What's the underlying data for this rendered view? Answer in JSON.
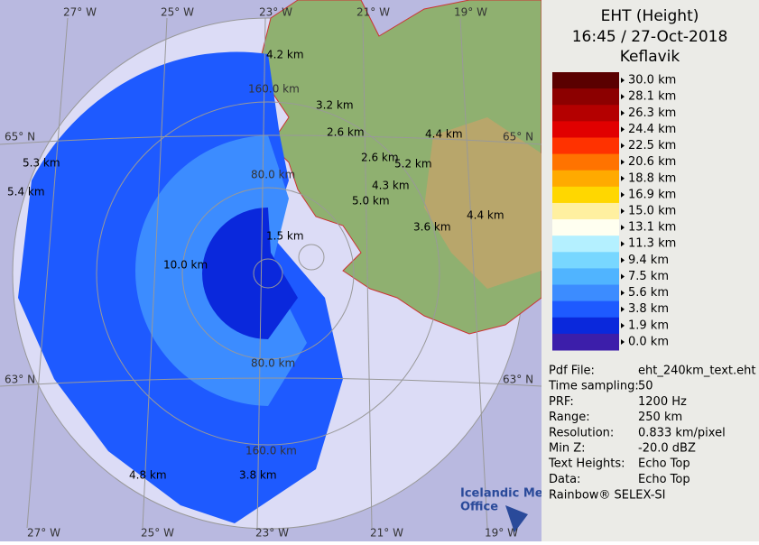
{
  "header": {
    "title": "EHT (Height)",
    "time": "16:45 / 27-Oct-2018",
    "site": "Keflavik"
  },
  "legend": [
    {
      "label": "30.0 km",
      "color": "#5a0000"
    },
    {
      "label": "28.1 km",
      "color": "#8c0000"
    },
    {
      "label": "26.3 km",
      "color": "#b40000"
    },
    {
      "label": "24.4 km",
      "color": "#e10000"
    },
    {
      "label": "22.5 km",
      "color": "#ff3200"
    },
    {
      "label": "20.6 km",
      "color": "#ff7300"
    },
    {
      "label": "18.8 km",
      "color": "#ffaa00"
    },
    {
      "label": "16.9 km",
      "color": "#ffd700"
    },
    {
      "label": "15.0 km",
      "color": "#fff0a0"
    },
    {
      "label": "13.1 km",
      "color": "#fffff0"
    },
    {
      "label": "11.3 km",
      "color": "#b4f0ff"
    },
    {
      "label": "9.4 km",
      "color": "#78d7ff"
    },
    {
      "label": "7.5 km",
      "color": "#50b4ff"
    },
    {
      "label": "5.6 km",
      "color": "#3c8cff"
    },
    {
      "label": "3.8 km",
      "color": "#1e5aff"
    },
    {
      "label": "1.9 km",
      "color": "#0a28dc"
    },
    {
      "label": "0.0 km",
      "color": "#3c1eaa"
    }
  ],
  "info": [
    [
      "Pdf File:",
      "eht_240km_text.eht"
    ],
    [
      "Time sampling:",
      "50"
    ],
    [
      "PRF:",
      "1200 Hz"
    ],
    [
      "Range:",
      "250 km"
    ],
    [
      "Resolution:",
      "0.833 km/pixel"
    ],
    [
      "Min Z:",
      "-20.0 dBZ"
    ],
    [
      "Text Heights:",
      "Echo Top"
    ],
    [
      "Data:",
      "Echo Top"
    ]
  ],
  "footer": "Rainbow® SELEX-SI",
  "map": {
    "lon_top": [
      "27° W",
      "25° W",
      "23° W",
      "21° W",
      "19° W"
    ],
    "lon_bottom": [
      "27° W",
      "25° W",
      "23° W",
      "21° W",
      "19° W"
    ],
    "lat": [
      "65° N",
      "65° N",
      "63° N",
      "63° N"
    ],
    "rings": [
      "160.0 km",
      "80.0 km",
      "80.0 km",
      "160.0 km"
    ],
    "echo": [
      "4.2 km",
      "3.2 km",
      "2.6 km",
      "4.4 km",
      "2.6 km",
      "5.2 km",
      "5.3 km",
      "5.4 km",
      "4.3 km",
      "5.0 km",
      "4.4 km",
      "3.6 km",
      "1.5 km",
      "10.0 km",
      "4.8 km",
      "3.8 km"
    ]
  },
  "logo": [
    "Icelandic Met",
    "Office"
  ]
}
